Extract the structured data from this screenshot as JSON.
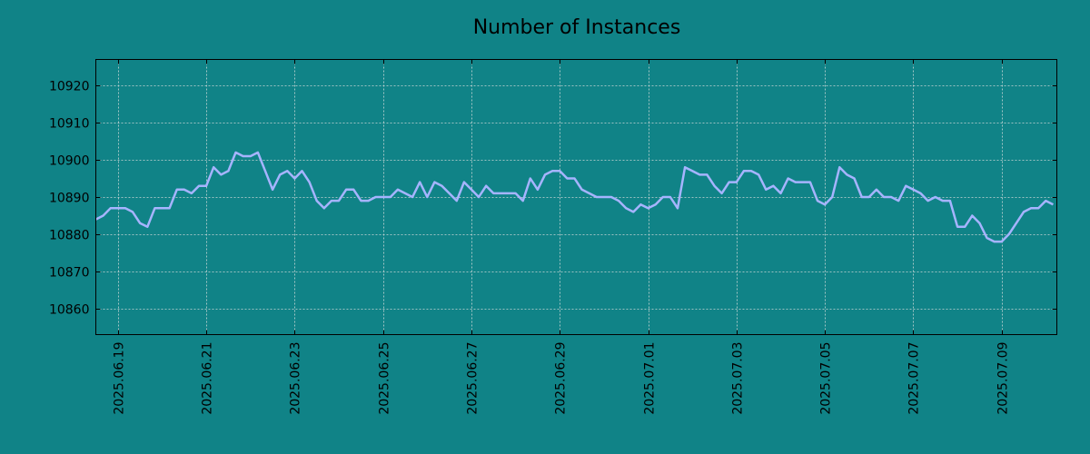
{
  "chart_data": {
    "type": "line",
    "title": "Number of Instances",
    "xlabel": "",
    "ylabel": "",
    "grid": true,
    "colors": {
      "background": "#108387",
      "line": "#a6b4ff"
    },
    "xlim": [
      "2025-06-18 12:00",
      "2025-07-10 06:00"
    ],
    "ylim": [
      10853,
      10927
    ],
    "y_ticks": [
      10860,
      10870,
      10880,
      10890,
      10900,
      10910,
      10920
    ],
    "x_ticks": [
      "2025.06.19",
      "2025.06.21",
      "2025.06.23",
      "2025.06.25",
      "2025.06.27",
      "2025.06.29",
      "2025.07.01",
      "2025.07.03",
      "2025.07.05",
      "2025.07.07",
      "2025.07.09"
    ],
    "series": [
      {
        "x": [
          "2025-06-18 12:00",
          "2025-06-18 16:00",
          "2025-06-18 20:00",
          "2025-06-19 00:00",
          "2025-06-19 04:00",
          "2025-06-19 08:00",
          "2025-06-19 12:00",
          "2025-06-19 16:00",
          "2025-06-19 20:00",
          "2025-06-20 00:00",
          "2025-06-20 04:00",
          "2025-06-20 08:00",
          "2025-06-20 12:00",
          "2025-06-20 16:00",
          "2025-06-20 20:00",
          "2025-06-21 00:00",
          "2025-06-21 04:00",
          "2025-06-21 08:00",
          "2025-06-21 12:00",
          "2025-06-21 16:00",
          "2025-06-21 20:00",
          "2025-06-22 00:00",
          "2025-06-22 04:00",
          "2025-06-22 08:00",
          "2025-06-22 12:00",
          "2025-06-22 16:00",
          "2025-06-22 20:00",
          "2025-06-23 00:00",
          "2025-06-23 04:00",
          "2025-06-23 08:00",
          "2025-06-23 12:00",
          "2025-06-23 16:00",
          "2025-06-23 20:00",
          "2025-06-24 00:00",
          "2025-06-24 04:00",
          "2025-06-24 08:00",
          "2025-06-24 12:00",
          "2025-06-24 16:00",
          "2025-06-24 20:00",
          "2025-06-25 00:00",
          "2025-06-25 04:00",
          "2025-06-25 08:00",
          "2025-06-25 12:00",
          "2025-06-25 16:00",
          "2025-06-25 20:00",
          "2025-06-26 00:00",
          "2025-06-26 04:00",
          "2025-06-26 08:00",
          "2025-06-26 12:00",
          "2025-06-26 16:00",
          "2025-06-26 20:00",
          "2025-06-27 00:00",
          "2025-06-27 04:00",
          "2025-06-27 08:00",
          "2025-06-27 12:00",
          "2025-06-27 16:00",
          "2025-06-27 20:00",
          "2025-06-28 00:00",
          "2025-06-28 04:00",
          "2025-06-28 08:00",
          "2025-06-28 12:00",
          "2025-06-28 16:00",
          "2025-06-28 20:00",
          "2025-06-29 00:00",
          "2025-06-29 04:00",
          "2025-06-29 08:00",
          "2025-06-29 12:00",
          "2025-06-29 16:00",
          "2025-06-29 20:00",
          "2025-06-30 00:00",
          "2025-06-30 04:00",
          "2025-06-30 08:00",
          "2025-06-30 12:00",
          "2025-06-30 16:00",
          "2025-06-30 20:00",
          "2025-07-01 00:00",
          "2025-07-01 04:00",
          "2025-07-01 08:00",
          "2025-07-01 12:00",
          "2025-07-01 16:00",
          "2025-07-01 20:00",
          "2025-07-02 00:00",
          "2025-07-02 04:00",
          "2025-07-02 08:00",
          "2025-07-02 12:00",
          "2025-07-02 16:00",
          "2025-07-02 20:00",
          "2025-07-03 00:00",
          "2025-07-03 04:00",
          "2025-07-03 08:00",
          "2025-07-03 12:00",
          "2025-07-03 16:00",
          "2025-07-03 20:00",
          "2025-07-04 00:00",
          "2025-07-04 04:00",
          "2025-07-04 08:00",
          "2025-07-04 12:00",
          "2025-07-04 16:00",
          "2025-07-04 20:00",
          "2025-07-05 00:00",
          "2025-07-05 04:00",
          "2025-07-05 08:00",
          "2025-07-05 12:00",
          "2025-07-05 16:00",
          "2025-07-05 20:00",
          "2025-07-06 00:00",
          "2025-07-06 04:00",
          "2025-07-06 08:00",
          "2025-07-06 12:00",
          "2025-07-06 16:00",
          "2025-07-06 20:00",
          "2025-07-07 00:00",
          "2025-07-07 04:00",
          "2025-07-07 08:00",
          "2025-07-07 12:00",
          "2025-07-07 16:00",
          "2025-07-07 20:00",
          "2025-07-08 00:00",
          "2025-07-08 04:00",
          "2025-07-08 08:00",
          "2025-07-08 12:00",
          "2025-07-08 16:00",
          "2025-07-08 20:00",
          "2025-07-09 00:00",
          "2025-07-09 04:00",
          "2025-07-09 08:00",
          "2025-07-09 12:00",
          "2025-07-09 16:00",
          "2025-07-09 20:00",
          "2025-07-10 00:00",
          "2025-07-10 04:00"
        ],
        "y": [
          10884,
          10885,
          10887,
          10887,
          10887,
          10886,
          10883,
          10882,
          10887,
          10887,
          10887,
          10892,
          10892,
          10891,
          10893,
          10893,
          10898,
          10896,
          10897,
          10902,
          10901,
          10901,
          10902,
          10897,
          10892,
          10896,
          10897,
          10895,
          10897,
          10894,
          10889,
          10887,
          10889,
          10889,
          10892,
          10892,
          10889,
          10889,
          10890,
          10890,
          10890,
          10892,
          10891,
          10890,
          10894,
          10890,
          10894,
          10893,
          10891,
          10889,
          10894,
          10892,
          10890,
          10893,
          10891,
          10891,
          10891,
          10891,
          10889,
          10895,
          10892,
          10896,
          10897,
          10897,
          10895,
          10895,
          10892,
          10891,
          10890,
          10890,
          10890,
          10889,
          10887,
          10886,
          10888,
          10887,
          10888,
          10890,
          10890,
          10887,
          10898,
          10897,
          10896,
          10896,
          10893,
          10891,
          10894,
          10894,
          10897,
          10897,
          10896,
          10892,
          10893,
          10891,
          10895,
          10894,
          10894,
          10894,
          10889,
          10888,
          10890,
          10898,
          10896,
          10895,
          10890,
          10890,
          10892,
          10890,
          10890,
          10889,
          10893,
          10892,
          10891,
          10889,
          10890,
          10889,
          10889,
          10882,
          10882,
          10885,
          10883,
          10879,
          10878,
          10878,
          10880,
          10883,
          10886,
          10887,
          10887,
          10889,
          10888
        ]
      }
    ]
  }
}
